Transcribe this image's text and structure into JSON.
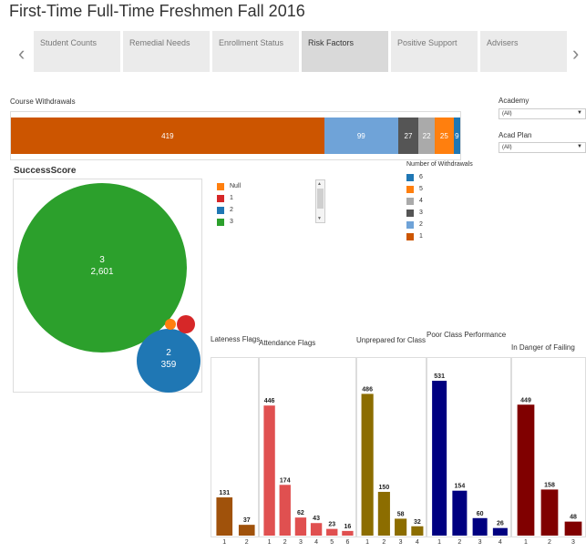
{
  "header": {
    "title": "First-Time Full-Time Freshmen Fall 2016"
  },
  "nav": {
    "prev_icon": "chevron-left-icon",
    "next_icon": "chevron-right-icon"
  },
  "tabs": [
    {
      "label": "Student Counts"
    },
    {
      "label": "Remedial Needs"
    },
    {
      "label": "Enrollment Status"
    },
    {
      "label": "Risk Factors",
      "active": true
    },
    {
      "label": "Positive Support"
    },
    {
      "label": "Advisers"
    }
  ],
  "filters": {
    "academy": {
      "label": "Academy",
      "value": "(All)"
    },
    "acad_plan": {
      "label": "Acad Plan",
      "value": "(All)"
    }
  },
  "course_withdrawals": {
    "title": "Course Withdrawals",
    "legend_title": "Number of Withdrawals",
    "segments": [
      {
        "label": "1",
        "value": 419,
        "color": "#cc5500"
      },
      {
        "label": "2",
        "value": 99,
        "color": "#6fa3d8"
      },
      {
        "label": "3",
        "value": 27,
        "color": "#555555"
      },
      {
        "label": "4",
        "value": 22,
        "color": "#aaaaaa"
      },
      {
        "label": "5",
        "value": 25,
        "color": "#ff7f0e"
      },
      {
        "label": "6",
        "value": 9,
        "color": "#1f77b4"
      }
    ],
    "legend": [
      {
        "label": "6",
        "color": "#1f77b4"
      },
      {
        "label": "5",
        "color": "#ff7f0e"
      },
      {
        "label": "4",
        "color": "#aaaaaa"
      },
      {
        "label": "3",
        "color": "#555555"
      },
      {
        "label": "2",
        "color": "#6fa3d8"
      },
      {
        "label": "1",
        "color": "#cc5500"
      }
    ]
  },
  "success_score": {
    "title": "SuccessScore",
    "legend": [
      {
        "label": "Null",
        "color": "#ff7f0e"
      },
      {
        "label": "1",
        "color": "#d62728"
      },
      {
        "label": "2",
        "color": "#1f77b4"
      },
      {
        "label": "3",
        "color": "#2ca02c"
      }
    ],
    "bubbles": [
      {
        "label": "3",
        "value": "2,601",
        "color": "#2ca02c"
      },
      {
        "label": "2",
        "value": "359",
        "color": "#1f77b4"
      },
      {
        "label": "1",
        "value": "",
        "color": "#d62728"
      },
      {
        "label": "Null",
        "value": "",
        "color": "#ff7f0e"
      }
    ]
  },
  "chart_data": [
    {
      "type": "bar",
      "title": "Course Withdrawals",
      "categories": [
        "1",
        "2",
        "3",
        "4",
        "5",
        "6"
      ],
      "values": [
        419,
        99,
        27,
        22,
        25,
        9
      ],
      "xlabel": "",
      "ylabel": ""
    },
    {
      "type": "bar",
      "title": "Lateness Flags",
      "categories": [
        "1",
        "2"
      ],
      "values": [
        131,
        37
      ],
      "color": "#a0520b",
      "xlabel": "",
      "ylabel": ""
    },
    {
      "type": "bar",
      "title": "Attendance Flags",
      "categories": [
        "1",
        "2",
        "3",
        "4",
        "5",
        "6"
      ],
      "values": [
        446,
        174,
        62,
        43,
        23,
        16
      ],
      "color": "#e05050",
      "xlabel": "",
      "ylabel": ""
    },
    {
      "type": "bar",
      "title": "Unprepared for Class",
      "categories": [
        "1",
        "2",
        "3",
        "4"
      ],
      "values": [
        486,
        150,
        58,
        32
      ],
      "color": "#8c6d00",
      "xlabel": "",
      "ylabel": ""
    },
    {
      "type": "bar",
      "title": "Poor Class Performance",
      "categories": [
        "1",
        "2",
        "3",
        "4"
      ],
      "values": [
        531,
        154,
        60,
        26
      ],
      "color": "#000080",
      "xlabel": "",
      "ylabel": ""
    },
    {
      "type": "bar",
      "title": "In Danger of Failing",
      "categories": [
        "1",
        "2",
        "3"
      ],
      "values": [
        449,
        158,
        48
      ],
      "color": "#800000",
      "xlabel": "",
      "ylabel": ""
    }
  ]
}
